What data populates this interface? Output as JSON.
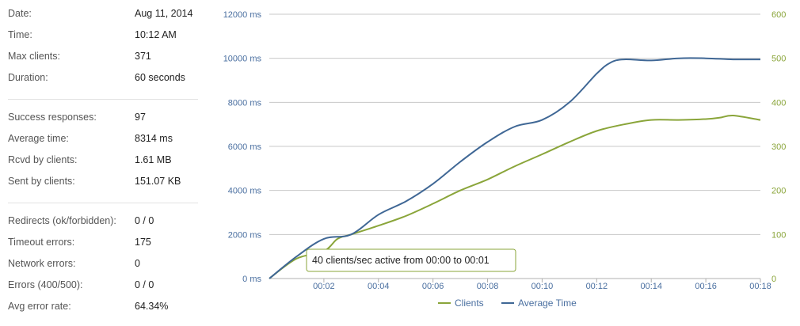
{
  "stats": {
    "groups": [
      [
        {
          "label": "Date:",
          "value": "Aug 11, 2014"
        },
        {
          "label": "Time:",
          "value": "10:12 AM"
        },
        {
          "label": "Max clients:",
          "value": "371"
        },
        {
          "label": "Duration:",
          "value": "60 seconds"
        }
      ],
      [
        {
          "label": "Success responses:",
          "value": "97"
        },
        {
          "label": "Average time:",
          "value": "8314 ms"
        },
        {
          "label": "Rcvd by clients:",
          "value": "1.61 MB"
        },
        {
          "label": "Sent by clients:",
          "value": "151.07 KB"
        }
      ],
      [
        {
          "label": "Redirects (ok/forbidden):",
          "value": "0 / 0"
        },
        {
          "label": "Timeout errors:",
          "value": "175"
        },
        {
          "label": "Network errors:",
          "value": "0"
        },
        {
          "label": "Errors (400/500):",
          "value": "0 / 0"
        },
        {
          "label": "Avg error rate:",
          "value": "64.34%"
        }
      ]
    ]
  },
  "chart_data": {
    "type": "line",
    "title": "",
    "xlabel": "",
    "ylabel": "",
    "x_ticks": [
      "00:02",
      "00:04",
      "00:06",
      "00:08",
      "00:10",
      "00:12",
      "00:14",
      "00:16",
      "00:18"
    ],
    "xlim": [
      0,
      18
    ],
    "y_left": {
      "ticks": [
        "0 ms",
        "2000 ms",
        "4000 ms",
        "6000 ms",
        "8000 ms",
        "10000 ms",
        "12000 ms"
      ],
      "ylim": [
        0,
        12000
      ],
      "color": "#4a6fa0"
    },
    "y_right": {
      "ticks": [
        "0",
        "100",
        "200",
        "300",
        "400",
        "500",
        "600"
      ],
      "ylim": [
        0,
        600
      ],
      "color": "#8aa53a"
    },
    "grid": true,
    "legend_position": "bottom",
    "series": [
      {
        "name": "Clients",
        "axis": "right",
        "color": "#8aa53a",
        "x": [
          0,
          1,
          2,
          2.5,
          3,
          4,
          5,
          6,
          7,
          8,
          9,
          10,
          11,
          12,
          13,
          14,
          15,
          16,
          16.5,
          17,
          18
        ],
        "y": [
          0,
          45,
          62,
          90,
          100,
          120,
          142,
          170,
          200,
          225,
          255,
          282,
          310,
          335,
          350,
          360,
          360,
          362,
          365,
          370,
          360
        ]
      },
      {
        "name": "Average Time",
        "axis": "left",
        "color": "#3f6795",
        "x": [
          0,
          1,
          2,
          3,
          4,
          5,
          6,
          7,
          8,
          9,
          10,
          11,
          12,
          12.5,
          13,
          14,
          15,
          16,
          17,
          18
        ],
        "y": [
          0,
          1000,
          1800,
          2000,
          2900,
          3500,
          4300,
          5300,
          6200,
          6900,
          7200,
          8000,
          9300,
          9800,
          9950,
          9900,
          10000,
          10000,
          9950,
          9950
        ]
      }
    ],
    "tooltip": "40 clients/sec active from 00:00 to 00:01"
  }
}
